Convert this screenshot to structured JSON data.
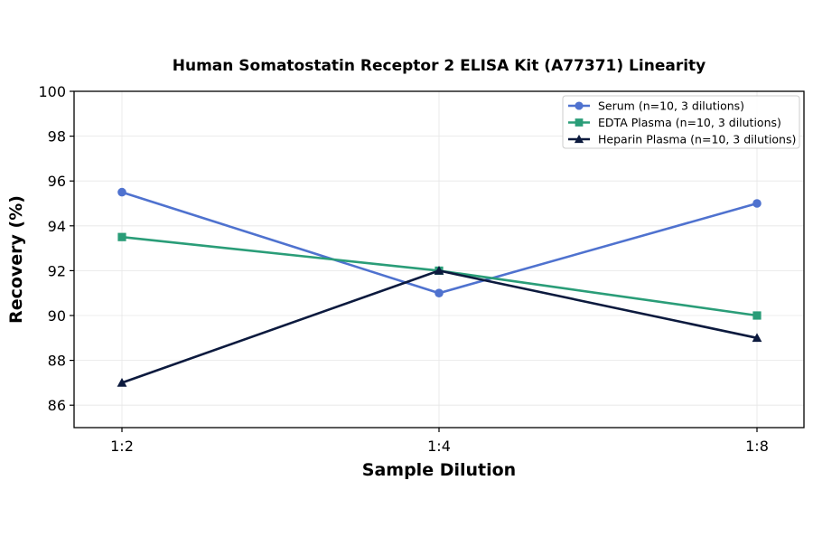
{
  "chart_data": {
    "type": "line",
    "title": "Human Somatostatin Receptor 2 ELISA Kit (A77371) Linearity",
    "xlabel": "Sample Dilution",
    "ylabel": "Recovery (%)",
    "categories": [
      "1:2",
      "1:4",
      "1:8"
    ],
    "ylim": [
      85,
      100
    ],
    "yticks": [
      86,
      88,
      90,
      92,
      94,
      96,
      98,
      100
    ],
    "grid": true,
    "legend_position": "top-right",
    "series": [
      {
        "name": "Serum (n=10, 3 dilutions)",
        "values": [
          95.5,
          91,
          95
        ],
        "color": "#4f72cf",
        "marker": "circle"
      },
      {
        "name": "EDTA Plasma (n=10, 3 dilutions)",
        "values": [
          93.5,
          92,
          90
        ],
        "color": "#2a9d78",
        "marker": "square"
      },
      {
        "name": "Heparin Plasma (n=10, 3 dilutions)",
        "values": [
          87,
          92,
          89
        ],
        "color": "#0c1a3e",
        "marker": "triangle"
      }
    ]
  }
}
